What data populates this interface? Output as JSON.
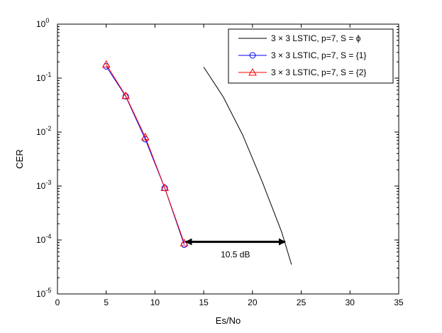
{
  "chart_data": {
    "type": "line",
    "xlabel": "Es/No",
    "ylabel": "CER",
    "xlim": [
      0,
      35
    ],
    "ylim": [
      1e-05,
      1
    ],
    "yscale": "log",
    "grid": false,
    "legend_position": "top-right",
    "x_ticks": [
      "0",
      "5",
      "10",
      "15",
      "20",
      "25",
      "30",
      "35"
    ],
    "y_ticks": [
      {
        "base": "10",
        "exp": "0"
      },
      {
        "base": "10",
        "exp": "-1"
      },
      {
        "base": "10",
        "exp": "-2"
      },
      {
        "base": "10",
        "exp": "-3"
      },
      {
        "base": "10",
        "exp": "-4"
      },
      {
        "base": "10",
        "exp": "-5"
      }
    ],
    "series": [
      {
        "name": "3 × 3 LSTIC, p=7, S = ϕ",
        "color": "#000000",
        "marker": "none",
        "x": [
          15,
          17,
          19,
          21,
          23,
          24
        ],
        "y": [
          0.16,
          0.045,
          0.0088,
          0.0012,
          0.00014,
          3.5e-05
        ]
      },
      {
        "name": "3 × 3 LSTIC, p=7, S = {1}",
        "color": "#0000ff",
        "marker": "circle",
        "x": [
          5,
          7,
          9,
          11,
          13
        ],
        "y": [
          0.165,
          0.046,
          0.0074,
          0.00092,
          8.2e-05
        ]
      },
      {
        "name": "3 × 3 LSTIC, p=7, S = {2}",
        "color": "#ff0000",
        "marker": "triangle",
        "x": [
          5,
          7,
          9,
          11,
          13
        ],
        "y": [
          0.18,
          0.047,
          0.0081,
          0.00093,
          8.8e-05
        ]
      }
    ],
    "annotation": {
      "text": "10.5 dB",
      "arrow_from": [
        13,
        9.25e-05
      ],
      "arrow_to": [
        23.5,
        9.25e-05
      ]
    }
  }
}
